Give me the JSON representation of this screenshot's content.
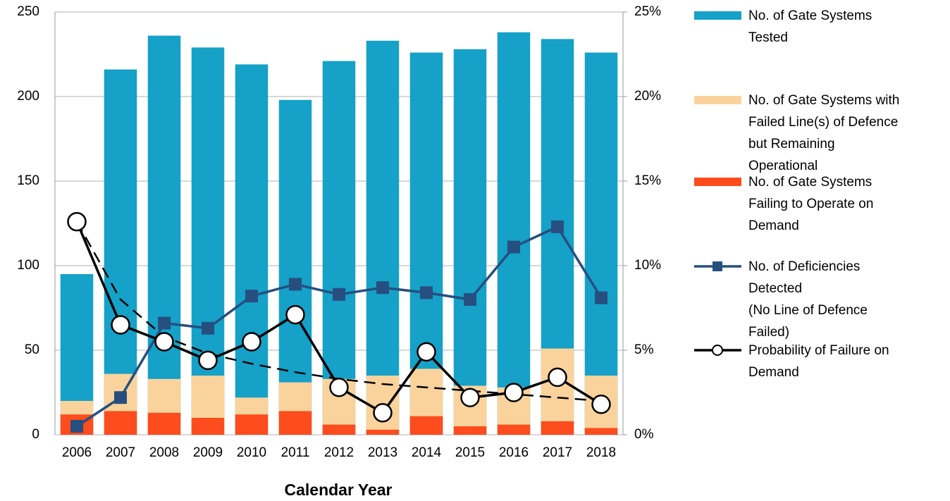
{
  "chart_data": {
    "type": "bar-line",
    "x_label": "Calendar Year",
    "categories": [
      "2006",
      "2007",
      "2008",
      "2009",
      "2010",
      "2011",
      "2012",
      "2013",
      "2014",
      "2015",
      "2016",
      "2017",
      "2018"
    ],
    "series": [
      {
        "name": "No. of Gate Systems\nTested",
        "kind": "bar",
        "color": "#15a1c8",
        "values": [
          95,
          216,
          236,
          229,
          219,
          198,
          221,
          233,
          226,
          228,
          238,
          234,
          226
        ]
      },
      {
        "name": "No. of Gate Systems with\nFailed Line(s) of Defence\nbut Remaining\nOperational",
        "kind": "bar",
        "color": "#fad39c",
        "values": [
          20,
          36,
          33,
          35,
          22,
          31,
          33,
          35,
          39,
          29,
          28,
          51,
          35
        ]
      },
      {
        "name": "No. of Gate Systems\nFailing to Operate on\nDemand",
        "kind": "bar",
        "color": "#fd4c1d",
        "values": [
          12,
          14,
          13,
          10,
          12,
          14,
          6,
          3,
          11,
          5,
          6,
          8,
          4
        ]
      },
      {
        "name": "No. of Deficiencies\nDetected\n(No Line of Defence\nFailed)",
        "kind": "line",
        "marker": "square",
        "color": "#264f7f",
        "values": [
          5,
          22,
          66,
          63,
          82,
          89,
          83,
          87,
          84,
          80,
          111,
          123,
          81
        ]
      },
      {
        "name": "Probability of Failure on\nDemand",
        "kind": "line",
        "marker": "circle",
        "color": "#000000",
        "axis": "y2",
        "values": [
          12.6,
          6.5,
          5.5,
          4.4,
          5.5,
          7.1,
          2.8,
          1.3,
          4.9,
          2.2,
          2.5,
          3.4,
          1.8
        ]
      }
    ],
    "trendline": {
      "color": "#000000",
      "axis": "y2",
      "dashed": true,
      "values": [
        12.6,
        8.0,
        5.8,
        4.8,
        4.2,
        3.7,
        3.3,
        3.0,
        2.8,
        2.6,
        2.4,
        2.2,
        2.0
      ]
    },
    "ylim": [
      0,
      250
    ],
    "yticks": [
      0,
      50,
      100,
      150,
      200,
      250
    ],
    "y2lim": [
      0,
      25
    ],
    "y2ticks": [
      {
        "value": 0,
        "label": "0%"
      },
      {
        "value": 5,
        "label": "5%"
      },
      {
        "value": 10,
        "label": "10%"
      },
      {
        "value": 15,
        "label": "15%"
      },
      {
        "value": 20,
        "label": "20%"
      },
      {
        "value": 25,
        "label": "25%"
      }
    ],
    "grid": true,
    "legend": "right"
  }
}
